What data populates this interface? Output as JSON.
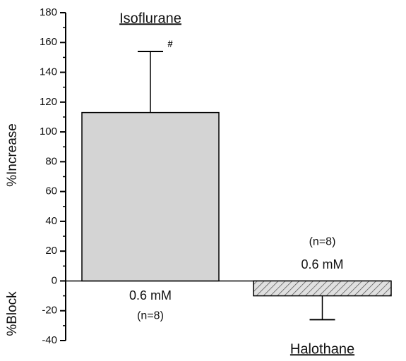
{
  "chart_data": {
    "type": "bar",
    "categories": [
      "Isoflurane",
      "Halothane"
    ],
    "values": [
      113,
      -10
    ],
    "errors": [
      41,
      16
    ],
    "colors": [
      "#d4d4d4",
      "#e0e0e0"
    ],
    "hatch": [
      false,
      true
    ],
    "doses": [
      "0.6 mM",
      "0.6 mM"
    ],
    "n_labels": [
      "(n=8)",
      "(n=8)"
    ],
    "annotation": "#",
    "ylabel_top": "%Increase",
    "ylabel_bottom": "%Block",
    "ylim": [
      -40,
      180
    ],
    "yticks": [
      -40,
      -20,
      0,
      20,
      40,
      60,
      80,
      100,
      120,
      140,
      160,
      180
    ],
    "yticks_minor": [
      -30,
      -10,
      10,
      30,
      50,
      70,
      90,
      110,
      130,
      150,
      170
    ]
  }
}
